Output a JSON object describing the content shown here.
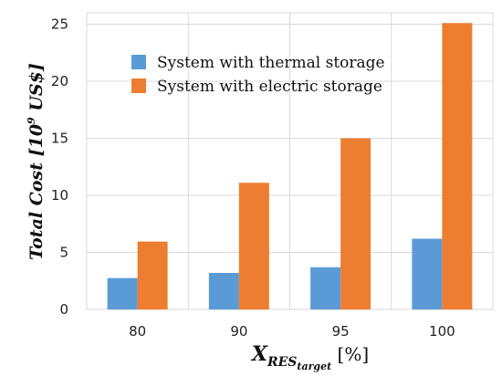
{
  "chart_data": {
    "type": "bar",
    "categories": [
      "80",
      "90",
      "95",
      "100"
    ],
    "series": [
      {
        "name": "System with thermal storage",
        "values": [
          2.75,
          3.2,
          3.7,
          6.2
        ],
        "color": "#5b9bd5"
      },
      {
        "name": "System with electric storage",
        "values": [
          5.95,
          11.1,
          15.0,
          25.1
        ],
        "color": "#ed7d31"
      }
    ],
    "ylim": [
      0,
      26
    ],
    "yticks": [
      0,
      5,
      10,
      15,
      20,
      25
    ],
    "ylabel": {
      "main": "Total Cost [10",
      "sup": "9",
      "tail": " US$]"
    },
    "xlabel": {
      "main": "X",
      "sub": "RES",
      "subsub": "target",
      "unit": " [%]"
    },
    "grid": true,
    "legend_position": "top-left"
  }
}
